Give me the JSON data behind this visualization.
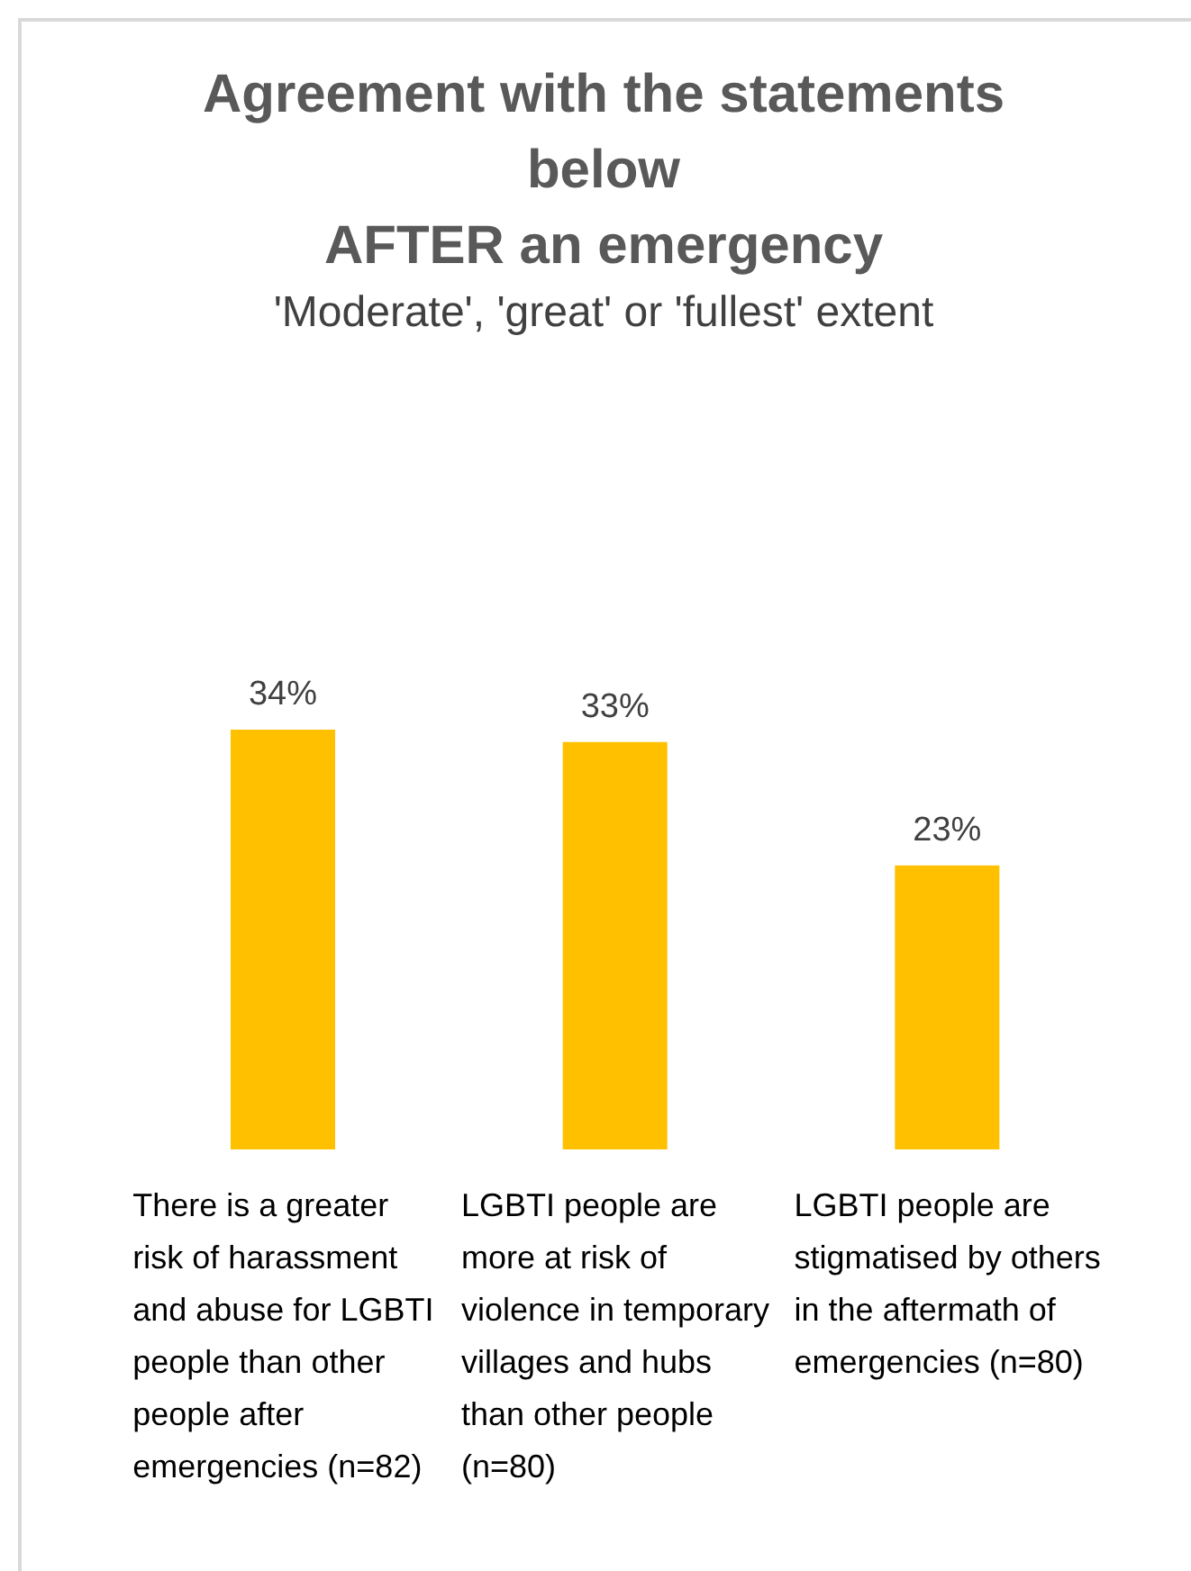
{
  "chart_data": {
    "type": "bar",
    "title": "Agreement with the statements below\nAFTER an emergency",
    "subtitle": "'Moderate', 'great' or 'fullest' extent",
    "categories": [
      "There is a greater risk of harassment and abuse for LGBTI people than other people after emergencies (n=82)",
      "LGBTI people are more at risk of violence in temporary villages and hubs than other people (n=80)",
      "LGBTI people are stigmatised by others in the aftermath of emergencies (n=80)"
    ],
    "values": [
      34,
      33,
      23
    ],
    "color": "#ffc000",
    "value_labels": [
      "34%",
      "33%",
      "23%"
    ]
  }
}
